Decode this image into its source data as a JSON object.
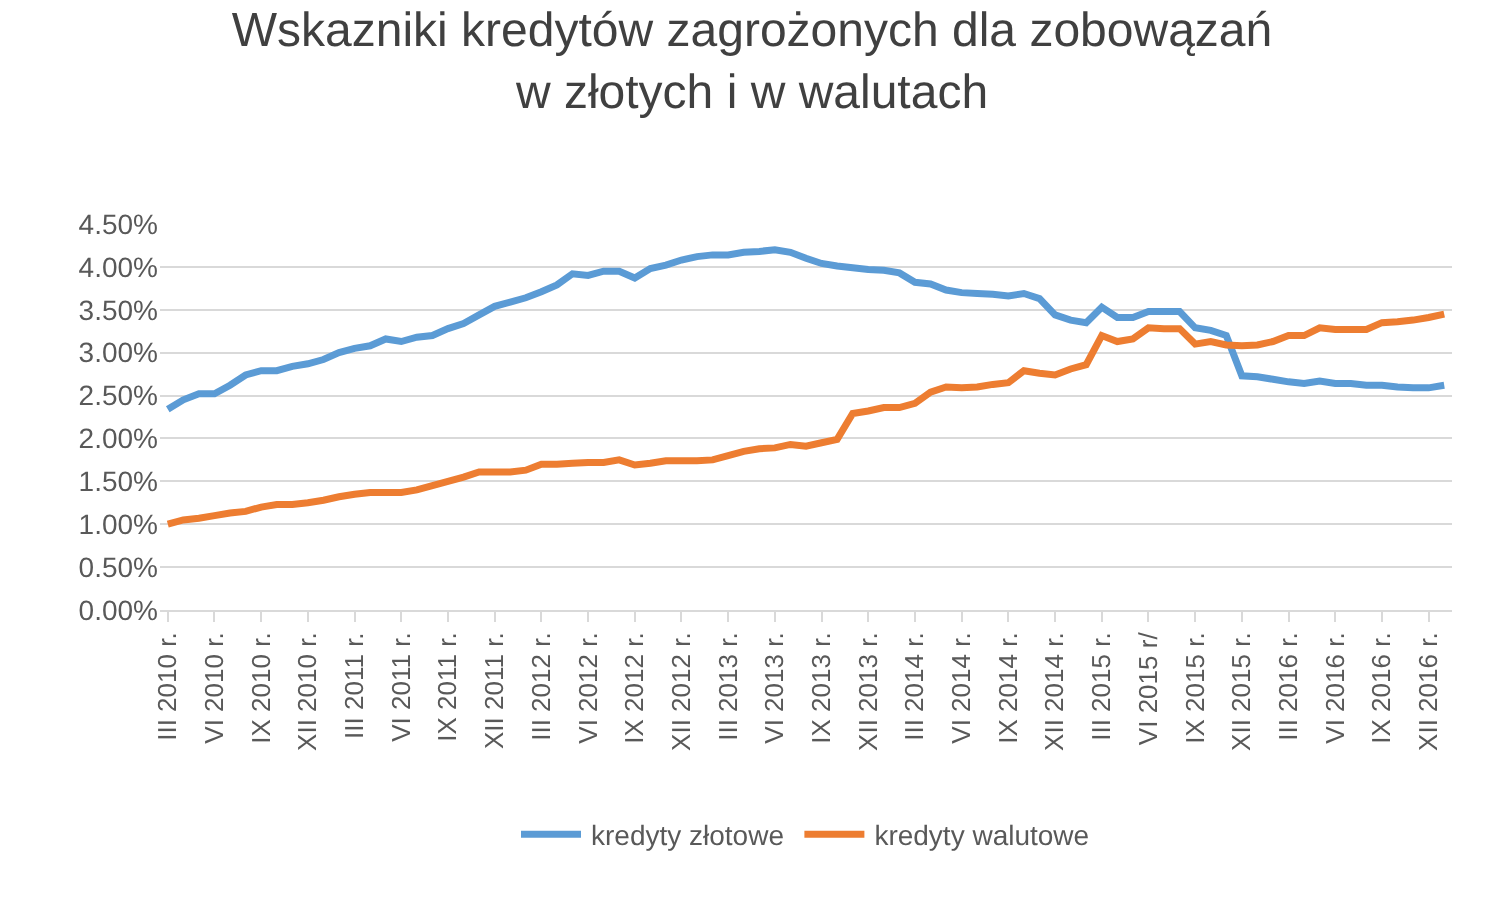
{
  "chart_data": {
    "type": "line",
    "title": "Wskazniki kredytów zagrożonych dla zobowązań\nw złotych i w walutach",
    "categories": [
      "III 2010 r.",
      null,
      null,
      "VI 2010 r.",
      null,
      null,
      "IX 2010 r.",
      null,
      null,
      "XII 2010 r.",
      null,
      null,
      "III 2011 r.",
      null,
      null,
      "VI 2011 r.",
      null,
      null,
      "IX 2011 r.",
      null,
      null,
      "XII 2011 r.",
      null,
      null,
      "III 2012 r.",
      null,
      null,
      "VI 2012 r.",
      null,
      null,
      "IX 2012 r.",
      null,
      null,
      "XII 2012 r.",
      null,
      null,
      "III 2013 r.",
      null,
      null,
      "VI 2013 r.",
      null,
      null,
      "IX 2013 r.",
      null,
      null,
      "XII 2013 r.",
      null,
      null,
      "III 2014 r.",
      null,
      null,
      "VI 2014 r.",
      null,
      null,
      "IX 2014 r.",
      null,
      null,
      "XII 2014 r.",
      null,
      null,
      "III 2015 r.",
      null,
      null,
      "VI 2015 r/",
      null,
      null,
      "IX 2015 r.",
      null,
      null,
      "XII 2015 r.",
      null,
      null,
      "III 2016 r.",
      null,
      null,
      "VI 2016 r.",
      null,
      null,
      "IX 2016 r.",
      null,
      null,
      "XII 2016 r.",
      null
    ],
    "series": [
      {
        "name": "kredyty złotowe",
        "color": "#5b9bd5",
        "values": [
          2.34,
          2.45,
          2.52,
          2.52,
          2.62,
          2.74,
          2.79,
          2.79,
          2.84,
          2.87,
          2.92,
          3.0,
          3.05,
          3.08,
          3.16,
          3.13,
          3.18,
          3.2,
          3.28,
          3.34,
          3.44,
          3.54,
          3.59,
          3.64,
          3.71,
          3.79,
          3.92,
          3.9,
          3.95,
          3.95,
          3.87,
          3.98,
          4.02,
          4.08,
          4.12,
          4.14,
          4.14,
          4.17,
          4.18,
          4.2,
          4.17,
          4.1,
          4.04,
          4.01,
          3.99,
          3.97,
          3.96,
          3.93,
          3.82,
          3.8,
          3.73,
          3.7,
          3.69,
          3.68,
          3.66,
          3.69,
          3.63,
          3.44,
          3.38,
          3.35,
          3.53,
          3.41,
          3.41,
          3.48,
          3.48,
          3.48,
          3.29,
          3.26,
          3.2,
          2.73,
          2.72,
          2.69,
          2.66,
          2.64,
          2.67,
          2.64,
          2.64,
          2.62,
          2.62,
          2.6,
          2.59,
          2.59,
          2.62
        ]
      },
      {
        "name": "kredyty walutowe",
        "color": "#ed7d31",
        "values": [
          1.0,
          1.05,
          1.07,
          1.1,
          1.13,
          1.15,
          1.2,
          1.23,
          1.23,
          1.25,
          1.28,
          1.32,
          1.35,
          1.37,
          1.37,
          1.37,
          1.4,
          1.45,
          1.5,
          1.55,
          1.61,
          1.61,
          1.61,
          1.63,
          1.7,
          1.7,
          1.71,
          1.72,
          1.72,
          1.75,
          1.69,
          1.71,
          1.74,
          1.74,
          1.74,
          1.75,
          1.8,
          1.85,
          1.88,
          1.89,
          1.93,
          1.91,
          1.95,
          1.99,
          2.29,
          2.32,
          2.36,
          2.36,
          2.41,
          2.54,
          2.6,
          2.59,
          2.6,
          2.63,
          2.65,
          2.79,
          2.76,
          2.74,
          2.81,
          2.86,
          3.2,
          3.13,
          3.16,
          3.29,
          3.28,
          3.28,
          3.1,
          3.13,
          3.09,
          3.08,
          3.09,
          3.13,
          3.2,
          3.2,
          3.29,
          3.27,
          3.27,
          3.27,
          3.35,
          3.36,
          3.38,
          3.41,
          3.45
        ]
      }
    ],
    "ylim": [
      0,
      4.5
    ],
    "yticks": [
      {
        "value": 0,
        "label": "0.00%"
      },
      {
        "value": 0.5,
        "label": "0.50%"
      },
      {
        "value": 1,
        "label": "1.00%"
      },
      {
        "value": 1.5,
        "label": "1.50%"
      },
      {
        "value": 2,
        "label": "2.00%"
      },
      {
        "value": 2.5,
        "label": "2.50%"
      },
      {
        "value": 3,
        "label": "3.00%"
      },
      {
        "value": 3.5,
        "label": "3.50%"
      },
      {
        "value": 4,
        "label": "4.00%"
      },
      {
        "value": 4.5,
        "label": "4.50%"
      }
    ],
    "grid": "y",
    "legend": "bottom",
    "marker": "none",
    "line_style": "solid"
  }
}
